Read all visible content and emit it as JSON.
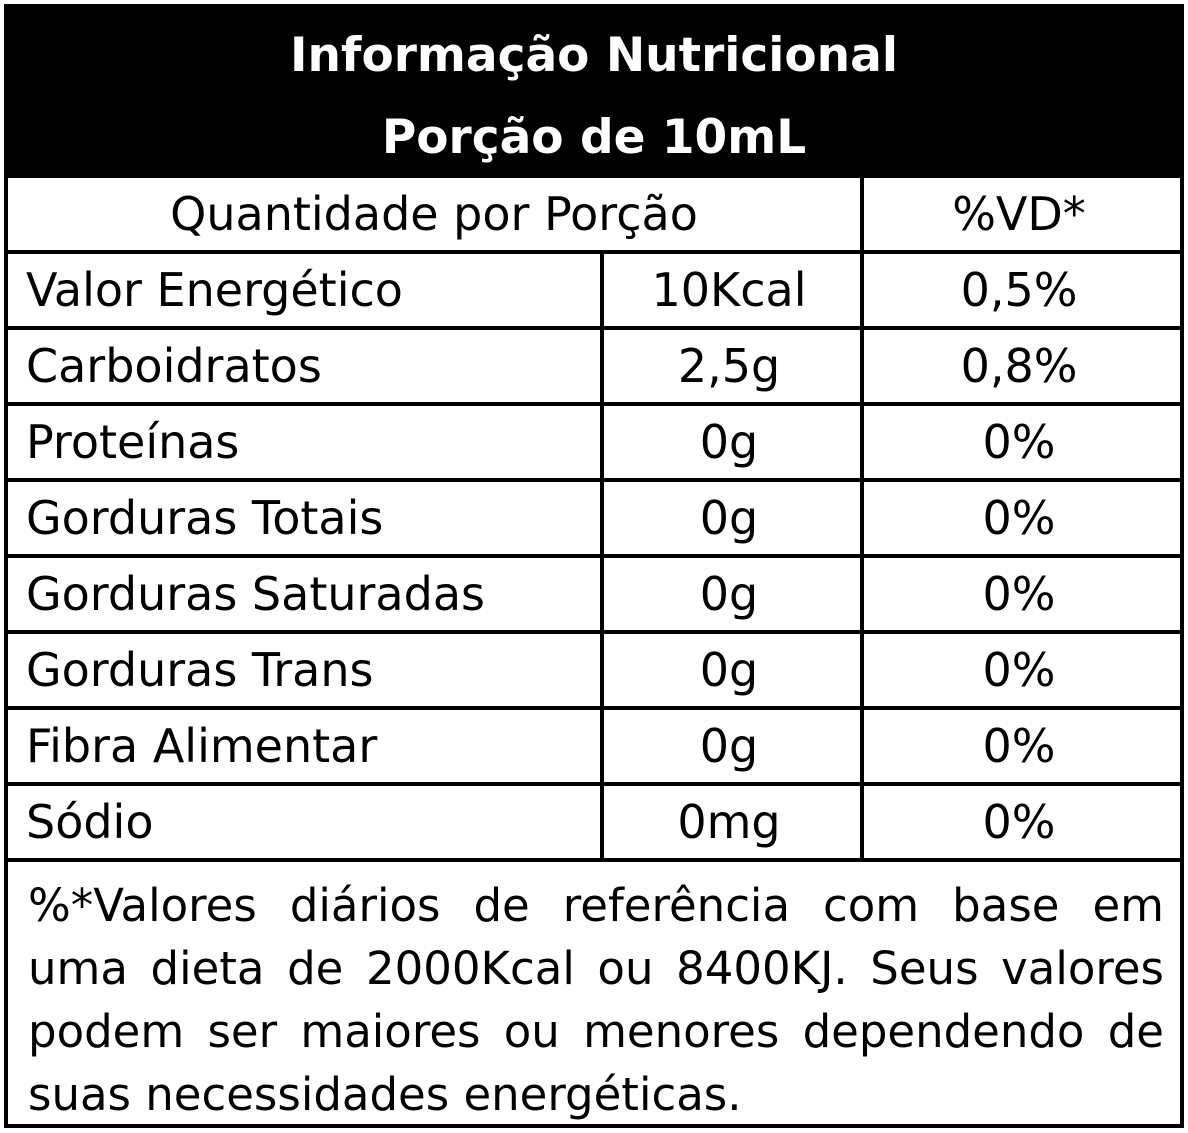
{
  "header": {
    "title": "Informação Nutricional",
    "serving": "Porção de 10mL"
  },
  "table": {
    "col_quantity_header": "Quantidade por Porção",
    "col_vd_header": "%VD*",
    "rows": [
      {
        "name": "Valor Energético",
        "amount": "10Kcal",
        "vd": "0,5%"
      },
      {
        "name": "Carboidratos",
        "amount": "2,5g",
        "vd": "0,8%"
      },
      {
        "name": "Proteínas",
        "amount": "0g",
        "vd": "0%"
      },
      {
        "name": "Gorduras Totais",
        "amount": "0g",
        "vd": "0%"
      },
      {
        "name": "Gorduras Saturadas",
        "amount": "0g",
        "vd": "0%"
      },
      {
        "name": "Gorduras Trans",
        "amount": "0g",
        "vd": "0%"
      },
      {
        "name": "Fibra Alimentar",
        "amount": "0g",
        "vd": "0%"
      },
      {
        "name": "Sódio",
        "amount": "0mg",
        "vd": "0%"
      }
    ]
  },
  "footnote": "%*Valores diários de referência com base em uma dieta de 2000Kcal ou 8400KJ. Seus valores podem ser maiores ou menores dependendo de suas necessidades energéticas."
}
